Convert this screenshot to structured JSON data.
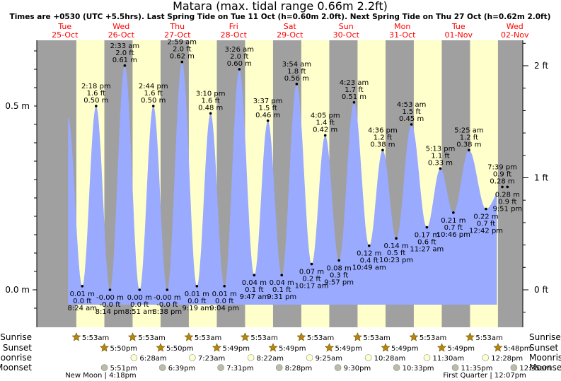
{
  "title": "Matara (max. tidal range 0.66m 2.2ft)",
  "subtitle": "Times are +0530 (UTC +5.5hrs). Last Spring Tide on Tue 11 Oct (h=0.60m 2.0ft). Next Spring Tide on Thu 27 Oct (h=0.62m 2.0ft)",
  "colors": {
    "day": "#ffffcc",
    "night": "#a0a0a0",
    "water": "#99aaff",
    "header_text": "#ff0000",
    "sun_icon": "#b8860b",
    "moon_icon": "#ccccaa"
  },
  "days": [
    {
      "dow": "Tue",
      "date": "25-Oct"
    },
    {
      "dow": "Wed",
      "date": "26-Oct"
    },
    {
      "dow": "Thu",
      "date": "27-Oct"
    },
    {
      "dow": "Fri",
      "date": "28-Oct"
    },
    {
      "dow": "Sat",
      "date": "29-Oct"
    },
    {
      "dow": "Sun",
      "date": "30-Oct"
    },
    {
      "dow": "Mon",
      "date": "31-Oct"
    },
    {
      "dow": "Tue",
      "date": "01-Nov"
    },
    {
      "dow": "Wed",
      "date": "02-Nov"
    }
  ],
  "chart_data": {
    "type": "area",
    "ylim_m": [
      -0.07,
      0.66
    ],
    "y_ticks_left": [
      "0.0 m",
      "0.5 m"
    ],
    "y_ticks_right": [
      "0 ft",
      "1 ft",
      "2 ft"
    ],
    "tides": [
      {
        "time": "8:24 am",
        "ft": "0.0 ft",
        "m": "0.01 m",
        "h": 0.01,
        "t": "2022-10-25T08:24",
        "type": "low"
      },
      {
        "time": "2:18 pm",
        "ft": "1.6 ft",
        "m": "0.50 m",
        "h": 0.5,
        "t": "2022-10-25T14:18",
        "type": "high"
      },
      {
        "time": "8:14 pm",
        "ft": "-0.0 ft",
        "m": "-0.00 m",
        "h": 0.0,
        "t": "2022-10-25T20:14",
        "type": "low"
      },
      {
        "time": "2:33 am",
        "ft": "2.0 ft",
        "m": "0.61 m",
        "h": 0.61,
        "t": "2022-10-26T02:33",
        "type": "high"
      },
      {
        "time": "8:51 am",
        "ft": "0.0 ft",
        "m": "0.00 m",
        "h": 0.0,
        "t": "2022-10-26T08:51",
        "type": "low"
      },
      {
        "time": "2:44 pm",
        "ft": "1.6 ft",
        "m": "0.50 m",
        "h": 0.5,
        "t": "2022-10-26T14:44",
        "type": "high"
      },
      {
        "time": "8:38 pm",
        "ft": "-0.0 ft",
        "m": "-0.00 m",
        "h": 0.0,
        "t": "2022-10-26T20:38",
        "type": "low"
      },
      {
        "time": "2:59 am",
        "ft": "2.0 ft",
        "m": "0.62 m",
        "h": 0.62,
        "t": "2022-10-27T02:59",
        "type": "high"
      },
      {
        "time": "9:19 am",
        "ft": "0.0 ft",
        "m": "0.01 m",
        "h": 0.01,
        "t": "2022-10-27T09:19",
        "type": "low"
      },
      {
        "time": "3:10 pm",
        "ft": "1.6 ft",
        "m": "0.48 m",
        "h": 0.48,
        "t": "2022-10-27T15:10",
        "type": "high"
      },
      {
        "time": "9:04 pm",
        "ft": "0.0 ft",
        "m": "0.01 m",
        "h": 0.01,
        "t": "2022-10-27T21:04",
        "type": "low"
      },
      {
        "time": "3:26 am",
        "ft": "2.0 ft",
        "m": "0.60 m",
        "h": 0.6,
        "t": "2022-10-28T03:26",
        "type": "high"
      },
      {
        "time": "9:47 am",
        "ft": "0.1 ft",
        "m": "0.04 m",
        "h": 0.04,
        "t": "2022-10-28T09:47",
        "type": "low"
      },
      {
        "time": "3:37 pm",
        "ft": "1.5 ft",
        "m": "0.46 m",
        "h": 0.46,
        "t": "2022-10-28T15:37",
        "type": "high"
      },
      {
        "time": "9:31 pm",
        "ft": "0.1 ft",
        "m": "0.04 m",
        "h": 0.04,
        "t": "2022-10-28T21:31",
        "type": "low"
      },
      {
        "time": "3:54 am",
        "ft": "1.8 ft",
        "m": "0.56 m",
        "h": 0.56,
        "t": "2022-10-29T03:54",
        "type": "high"
      },
      {
        "time": "10:17 am",
        "ft": "0.2 ft",
        "m": "0.07 m",
        "h": 0.07,
        "t": "2022-10-29T10:17",
        "type": "low"
      },
      {
        "time": "4:05 pm",
        "ft": "1.4 ft",
        "m": "0.42 m",
        "h": 0.42,
        "t": "2022-10-29T16:05",
        "type": "high"
      },
      {
        "time": "9:57 pm",
        "ft": "0.3 ft",
        "m": "0.08 m",
        "h": 0.08,
        "t": "2022-10-29T21:57",
        "type": "low"
      },
      {
        "time": "4:23 am",
        "ft": "1.7 ft",
        "m": "0.51 m",
        "h": 0.51,
        "t": "2022-10-30T04:23",
        "type": "high"
      },
      {
        "time": "10:49 am",
        "ft": "0.4 ft",
        "m": "0.12 m",
        "h": 0.12,
        "t": "2022-10-30T10:49",
        "type": "low"
      },
      {
        "time": "4:36 pm",
        "ft": "1.2 ft",
        "m": "0.38 m",
        "h": 0.38,
        "t": "2022-10-30T16:36",
        "type": "high"
      },
      {
        "time": "10:23 pm",
        "ft": "0.5 ft",
        "m": "0.14 m",
        "h": 0.14,
        "t": "2022-10-30T22:23",
        "type": "low"
      },
      {
        "time": "4:53 am",
        "ft": "1.5 ft",
        "m": "0.45 m",
        "h": 0.45,
        "t": "2022-10-31T04:53",
        "type": "high"
      },
      {
        "time": "11:27 am",
        "ft": "0.6 ft",
        "m": "0.17 m",
        "h": 0.17,
        "t": "2022-10-31T11:27",
        "type": "low"
      },
      {
        "time": "5:13 pm",
        "ft": "1.1 ft",
        "m": "0.33 m",
        "h": 0.33,
        "t": "2022-10-31T17:13",
        "type": "high"
      },
      {
        "time": "10:46 pm",
        "ft": "0.7 ft",
        "m": "0.21 m",
        "h": 0.21,
        "t": "2022-10-31T22:46",
        "type": "low"
      },
      {
        "time": "5:25 am",
        "ft": "1.2 ft",
        "m": "0.38 m",
        "h": 0.38,
        "t": "2022-11-01T05:25",
        "type": "high"
      },
      {
        "time": "12:42 pm",
        "ft": "0.7 ft",
        "m": "0.22 m",
        "h": 0.22,
        "t": "2022-11-01T12:42",
        "type": "low"
      },
      {
        "time": "7:39 pm",
        "ft": "0.9 ft",
        "m": "0.28 m",
        "h": 0.28,
        "t": "2022-11-01T19:39",
        "type": "high"
      },
      {
        "time": "9:51 pm",
        "ft": "0.9 ft",
        "m": "0.28 m",
        "h": 0.28,
        "t": "2022-11-01T21:51",
        "type": "low"
      }
    ]
  },
  "astro": {
    "labels": {
      "sunrise": "Sunrise",
      "sunset": "Sunset",
      "moonrise": "Moonrise",
      "moonset": "Moonset"
    },
    "sunrise": [
      {
        "text": "5:53am",
        "t": "2022-10-25T05:53"
      },
      {
        "text": "5:53am",
        "t": "2022-10-26T05:53"
      },
      {
        "text": "5:53am",
        "t": "2022-10-27T05:53"
      },
      {
        "text": "5:53am",
        "t": "2022-10-28T05:53"
      },
      {
        "text": "5:53am",
        "t": "2022-10-29T05:53"
      },
      {
        "text": "5:53am",
        "t": "2022-10-30T05:53"
      },
      {
        "text": "5:53am",
        "t": "2022-10-31T05:53"
      },
      {
        "text": "5:53am",
        "t": "2022-11-01T05:53"
      }
    ],
    "sunset": [
      {
        "text": "5:50pm",
        "t": "2022-10-25T17:50"
      },
      {
        "text": "5:50pm",
        "t": "2022-10-26T17:50"
      },
      {
        "text": "5:49pm",
        "t": "2022-10-27T17:49"
      },
      {
        "text": "5:49pm",
        "t": "2022-10-28T17:49"
      },
      {
        "text": "5:49pm",
        "t": "2022-10-29T17:49"
      },
      {
        "text": "5:49pm",
        "t": "2022-10-30T17:49"
      },
      {
        "text": "5:49pm",
        "t": "2022-10-31T17:49"
      },
      {
        "text": "5:48pm",
        "t": "2022-11-01T17:48"
      }
    ],
    "moonrise": [
      {
        "text": "6:28am",
        "t": "2022-10-26T06:28"
      },
      {
        "text": "7:23am",
        "t": "2022-10-27T07:23"
      },
      {
        "text": "8:22am",
        "t": "2022-10-28T08:22"
      },
      {
        "text": "9:25am",
        "t": "2022-10-29T09:25"
      },
      {
        "text": "10:28am",
        "t": "2022-10-30T10:28"
      },
      {
        "text": "11:30am",
        "t": "2022-10-31T11:30"
      },
      {
        "text": "12:28pm",
        "t": "2022-11-01T12:28"
      }
    ],
    "moonset": [
      {
        "text": "5:51pm",
        "t": "2022-10-25T17:51"
      },
      {
        "text": "6:39pm",
        "t": "2022-10-26T18:39"
      },
      {
        "text": "7:31pm",
        "t": "2022-10-27T19:31"
      },
      {
        "text": "8:28pm",
        "t": "2022-10-28T20:28"
      },
      {
        "text": "9:30pm",
        "t": "2022-10-29T21:30"
      },
      {
        "text": "10:33pm",
        "t": "2022-10-30T22:33"
      },
      {
        "text": "11:35pm",
        "t": "2022-10-31T23:35"
      },
      {
        "text": "12:35am",
        "t": "2022-11-02T00:35"
      }
    ],
    "phases": [
      {
        "text": "New Moon | 4:18pm",
        "t": "2022-10-25T16:18"
      },
      {
        "text": "First Quarter | 12:07pm",
        "t": "2022-11-01T12:07"
      }
    ]
  }
}
